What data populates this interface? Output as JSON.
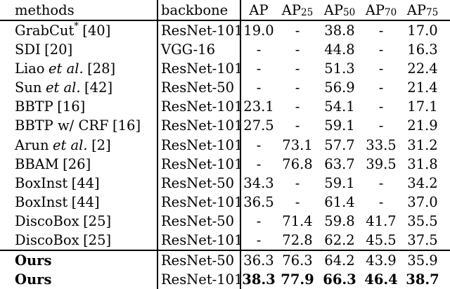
{
  "table": {
    "header": {
      "methods": "methods",
      "backbone": "backbone",
      "ap_cols": [
        {
          "base": "AP",
          "sub": ""
        },
        {
          "base": "AP",
          "sub": "25"
        },
        {
          "base": "AP",
          "sub": "50"
        },
        {
          "base": "AP",
          "sub": "70"
        },
        {
          "base": "AP",
          "sub": "75"
        }
      ]
    },
    "rows": [
      {
        "name": "GrabCut",
        "sup": "*",
        "italic": "",
        "ref": "[40]",
        "backbone": "ResNet-101",
        "values": [
          "19.0",
          "-",
          "38.8",
          "-",
          "17.0"
        ],
        "bold_name": false,
        "bold_values": false
      },
      {
        "name": "SDI",
        "sup": "",
        "italic": "",
        "ref": "[20]",
        "backbone": "VGG-16",
        "values": [
          "-",
          "-",
          "44.8",
          "-",
          "16.3"
        ],
        "bold_name": false,
        "bold_values": false
      },
      {
        "name": "Liao",
        "sup": "",
        "italic": "et al.",
        "ref": "[28]",
        "backbone": "ResNet-101",
        "values": [
          "-",
          "-",
          "51.3",
          "-",
          "22.4"
        ],
        "bold_name": false,
        "bold_values": false
      },
      {
        "name": "Sun",
        "sup": "",
        "italic": "et al.",
        "ref": "[42]",
        "backbone": "ResNet-50",
        "values": [
          "-",
          "-",
          "56.9",
          "-",
          "21.4"
        ],
        "bold_name": false,
        "bold_values": false
      },
      {
        "name": "BBTP",
        "sup": "",
        "italic": "",
        "ref": "[16]",
        "backbone": "ResNet-101",
        "values": [
          "23.1",
          "-",
          "54.1",
          "-",
          "17.1"
        ],
        "bold_name": false,
        "bold_values": false
      },
      {
        "name": "BBTP w/ CRF",
        "sup": "",
        "italic": "",
        "ref": "[16]",
        "backbone": "ResNet-101",
        "values": [
          "27.5",
          "-",
          "59.1",
          "-",
          "21.9"
        ],
        "bold_name": false,
        "bold_values": false
      },
      {
        "name": "Arun",
        "sup": "",
        "italic": "et al.",
        "ref": "[2]",
        "backbone": "ResNet-101",
        "values": [
          "-",
          "73.1",
          "57.7",
          "33.5",
          "31.2"
        ],
        "bold_name": false,
        "bold_values": false
      },
      {
        "name": "BBAM",
        "sup": "",
        "italic": "",
        "ref": "[26]",
        "backbone": "ResNet-101",
        "values": [
          "-",
          "76.8",
          "63.7",
          "39.5",
          "31.8"
        ],
        "bold_name": false,
        "bold_values": false
      },
      {
        "name": "BoxInst",
        "sup": "",
        "italic": "",
        "ref": "[44]",
        "backbone": "ResNet-50",
        "values": [
          "34.3",
          "-",
          "59.1",
          "-",
          "34.2"
        ],
        "bold_name": false,
        "bold_values": false
      },
      {
        "name": "BoxInst",
        "sup": "",
        "italic": "",
        "ref": "[44]",
        "backbone": "ResNet-101",
        "values": [
          "36.5",
          "-",
          "61.4",
          "-",
          "37.0"
        ],
        "bold_name": false,
        "bold_values": false
      },
      {
        "name": "DiscoBox",
        "sup": "",
        "italic": "",
        "ref": "[25]",
        "backbone": "ResNet-50",
        "values": [
          "-",
          "71.4",
          "59.8",
          "41.7",
          "35.5"
        ],
        "bold_name": false,
        "bold_values": false
      },
      {
        "name": "DiscoBox",
        "sup": "",
        "italic": "",
        "ref": "[25]",
        "backbone": "ResNet-101",
        "values": [
          "-",
          "72.8",
          "62.2",
          "45.5",
          "37.5"
        ],
        "bold_name": false,
        "bold_values": false
      },
      {
        "name": "Ours",
        "sup": "",
        "italic": "",
        "ref": "",
        "backbone": "ResNet-50",
        "values": [
          "36.3",
          "76.3",
          "64.2",
          "43.9",
          "35.9"
        ],
        "bold_name": true,
        "bold_values": false
      },
      {
        "name": "Ours",
        "sup": "",
        "italic": "",
        "ref": "",
        "backbone": "ResNet-101",
        "values": [
          "38.3",
          "77.9",
          "66.3",
          "46.4",
          "38.7"
        ],
        "bold_name": true,
        "bold_values": true
      }
    ],
    "colors": {
      "text": "#000000",
      "background": "#ffffff",
      "rule": "#000000"
    }
  }
}
